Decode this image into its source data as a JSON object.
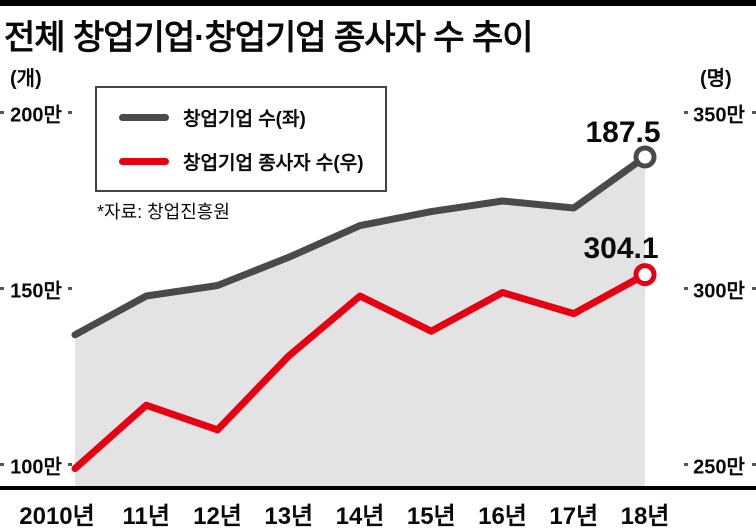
{
  "title": "전체 창업기업·창업기업 종사자 수 추이",
  "left_axis_unit": "(개)",
  "right_axis_unit": "(명)",
  "legend": {
    "series1": "창업기업 수(좌)",
    "series2": "창업기업 종사자 수(우)"
  },
  "source": "*자료: 창업진흥원",
  "end_labels": {
    "series1": "187.5",
    "series2": "304.1"
  },
  "colors": {
    "series1": "#4a4a4a",
    "series2": "#e60012",
    "area": "#e3e3e3"
  },
  "chart_data": {
    "type": "line",
    "x": [
      "2010년",
      "11년",
      "12년",
      "13년",
      "14년",
      "15년",
      "16년",
      "17년",
      "18년"
    ],
    "series": [
      {
        "name": "창업기업 수(좌)",
        "axis": "left",
        "unit": "만 개",
        "values": [
          137,
          148,
          151,
          159,
          168,
          172,
          175,
          173,
          187.5
        ]
      },
      {
        "name": "창업기업 종사자 수(우)",
        "axis": "right",
        "unit": "만 명",
        "values": [
          249,
          267,
          260,
          281,
          298,
          288,
          299,
          293,
          304.1
        ]
      }
    ],
    "left_axis": {
      "unit": "(개)",
      "tick_labels": [
        "200만",
        "150만",
        "100만"
      ],
      "tick_values": [
        200,
        150,
        100
      ]
    },
    "right_axis": {
      "unit": "(명)",
      "tick_labels": [
        "350만",
        "300만",
        "250만"
      ],
      "tick_values": [
        350,
        300,
        250
      ]
    },
    "grid": false,
    "legend_position": "top-left",
    "area_fill_under_series1": true,
    "end_point_markers": true
  }
}
